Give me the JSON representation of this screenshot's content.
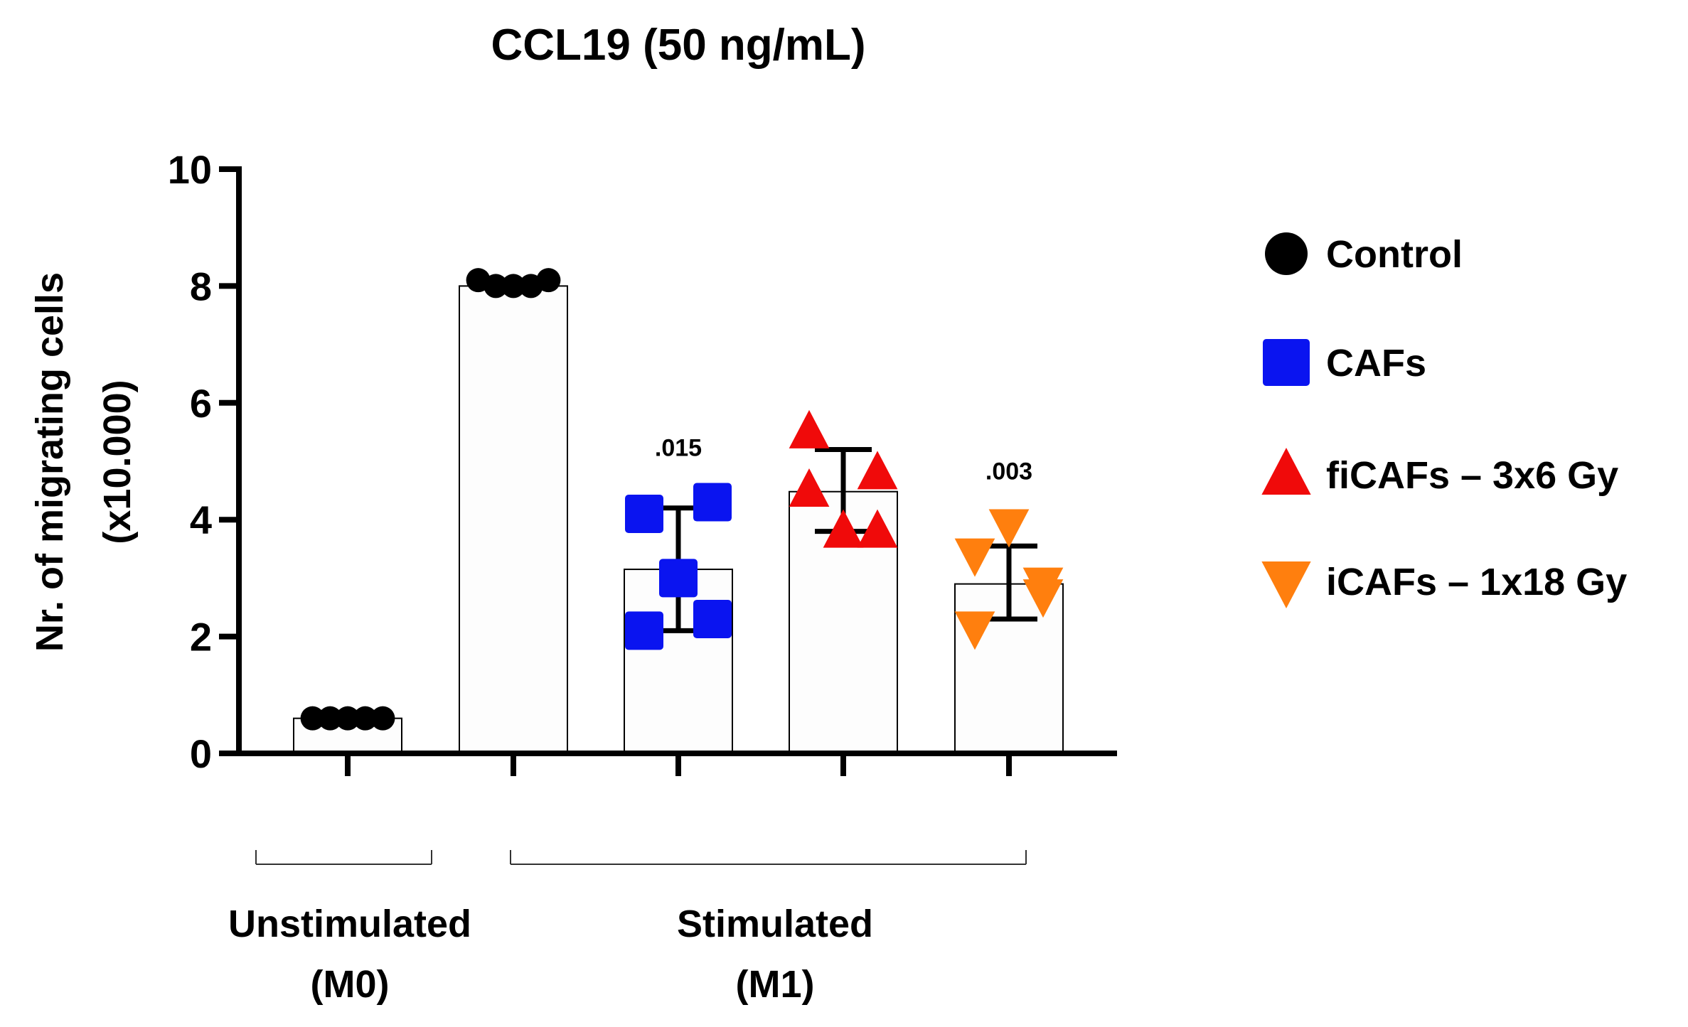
{
  "chart_data": {
    "type": "bar",
    "title": "CCL19 (50 ng/mL)",
    "ylabel_line1": "Nr. of migrating cells",
    "ylabel_line2": "(x10.000)",
    "xlabel": "",
    "ylim": [
      0,
      10
    ],
    "yticks": [
      "0",
      "2",
      "4",
      "6",
      "8",
      "10"
    ],
    "grid": false,
    "legend_position": "right",
    "categories": [
      "Unstimulated Control",
      "Stimulated Control",
      "Stimulated CAFs",
      "Stimulated fiCAFs",
      "Stimulated iCAFs"
    ],
    "bars": [
      {
        "value": 0.6,
        "err": null,
        "marker": "circle",
        "color": "#000000",
        "points": [
          0.6,
          0.6,
          0.6,
          0.6,
          0.6
        ],
        "pvalue": ""
      },
      {
        "value": 8.0,
        "err": null,
        "marker": "circle",
        "color": "#000000",
        "points": [
          8.1,
          8.0,
          8.0,
          8.0,
          8.1
        ],
        "pvalue": ""
      },
      {
        "value": 3.15,
        "err": [
          2.1,
          4.2
        ],
        "marker": "square",
        "color": "#0a14f0",
        "points": [
          4.1,
          2.1,
          3.0,
          4.3,
          2.3
        ],
        "pvalue": ".015"
      },
      {
        "value": 4.48,
        "err": [
          3.8,
          5.2
        ],
        "marker": "triangle-up",
        "color": "#f00a0a",
        "points": [
          4.5,
          5.5,
          3.8,
          4.8,
          3.8
        ],
        "pvalue": ""
      },
      {
        "value": 2.9,
        "err": [
          2.3,
          3.55
        ],
        "marker": "triangle-down",
        "color": "#ff7f0e",
        "points": [
          3.4,
          2.15,
          3.9,
          2.7,
          2.9
        ],
        "pvalue": ".003"
      }
    ],
    "legend": [
      {
        "label": "Control",
        "marker": "circle",
        "color": "#000000"
      },
      {
        "label": "CAFs",
        "marker": "square",
        "color": "#0a14f0"
      },
      {
        "label": "fiCAFs – 3x6 Gy",
        "marker": "triangle-up",
        "color": "#f00a0a"
      },
      {
        "label": "iCAFs – 1x18 Gy",
        "marker": "triangle-down",
        "color": "#ff7f0e"
      }
    ],
    "groups": [
      {
        "line1": "Unstimulated",
        "line2": "(M0)"
      },
      {
        "line1": "Stimulated",
        "line2": "(M1)"
      }
    ]
  }
}
